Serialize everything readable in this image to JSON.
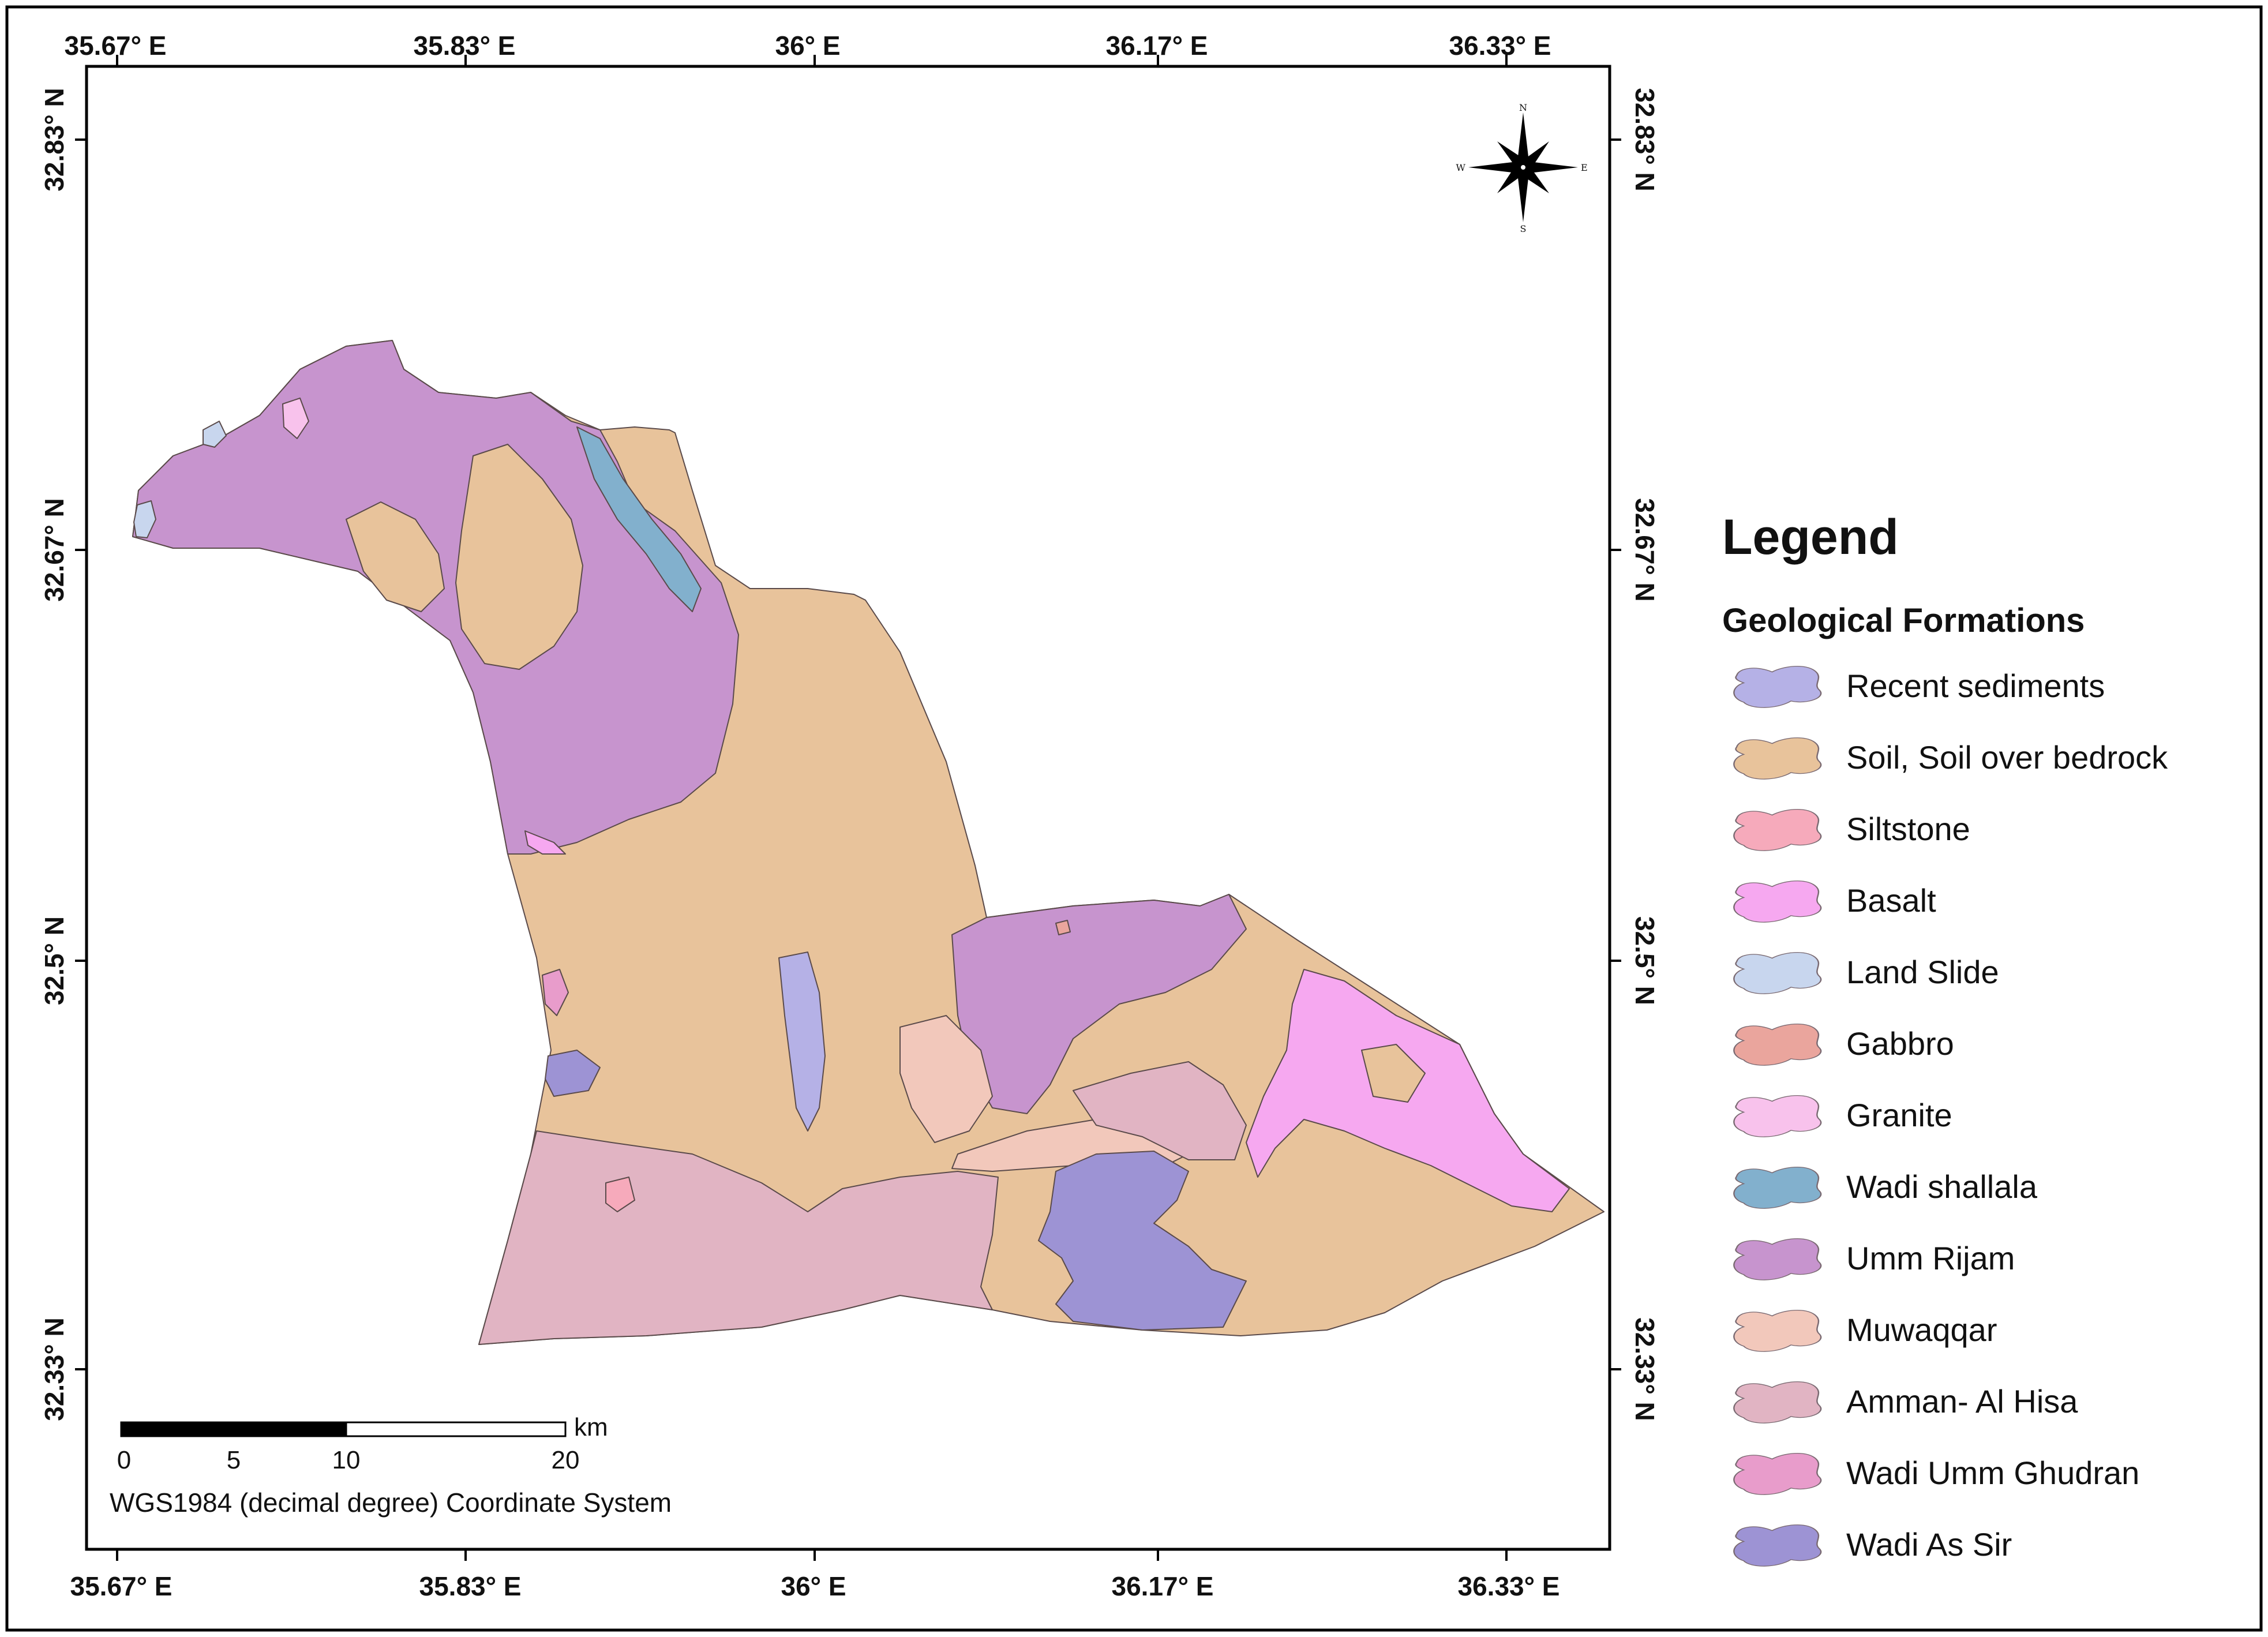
{
  "map": {
    "top_longitudes": [
      "35.67° E",
      "35.83° E",
      "36° E",
      "36.17° E",
      "36.33° E"
    ],
    "bottom_longitudes": [
      "35.67° E",
      "35.83° E",
      "36° E",
      "36.17° E",
      "36.33° E"
    ],
    "left_latitudes": [
      "32.83° N",
      "32.67° N",
      "32.5° N",
      "32.33° N"
    ],
    "right_latitudes": [
      "32.83° N",
      "32.67° N",
      "32.5° N",
      "32.33° N"
    ],
    "compass": {
      "n": "N",
      "s": "S",
      "e": "E",
      "w": "W"
    },
    "scale_bar": {
      "labels": [
        "0",
        "5",
        "10",
        "20"
      ],
      "unit": "km"
    },
    "coordinate_system": "WGS1984 (decimal degree) Coordinate System"
  },
  "legend": {
    "title": "Legend",
    "subtitle": "Geological Formations",
    "items": [
      {
        "label": "Recent sediments",
        "color": "#b5b1e6"
      },
      {
        "label": "Soil, Soil over bedrock",
        "color": "#e8c39b"
      },
      {
        "label": "Siltstone",
        "color": "#f6aabb"
      },
      {
        "label": "Basalt",
        "color": "#f6a8f0"
      },
      {
        "label": "Land Slide",
        "color": "#c8d6ee"
      },
      {
        "label": "Gabbro",
        "color": "#eaa59d"
      },
      {
        "label": "Granite",
        "color": "#f8c2ec"
      },
      {
        "label": "Wadi shallala",
        "color": "#82b0cd"
      },
      {
        "label": "Umm Rijam",
        "color": "#c794ce"
      },
      {
        "label": "Muwaqqar",
        "color": "#f2c8bb"
      },
      {
        "label": "Amman- Al Hisa",
        "color": "#e1b4c3"
      },
      {
        "label": "Wadi Umm Ghudran",
        "color": "#e89ccb"
      },
      {
        "label": "Wadi As Sir",
        "color": "#9d93d4"
      }
    ]
  }
}
